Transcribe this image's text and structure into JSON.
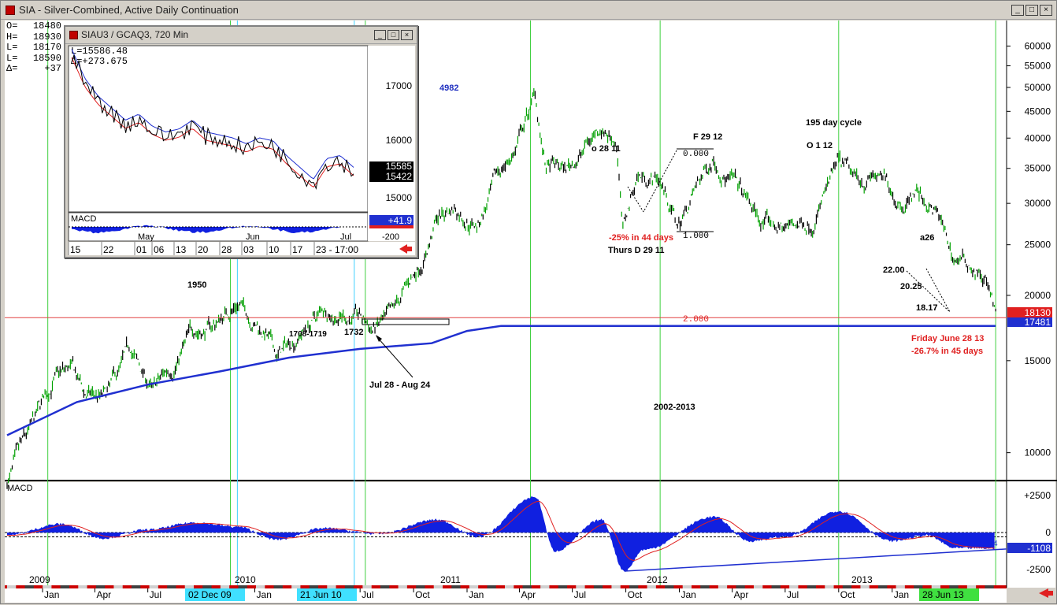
{
  "window": {
    "title": "SIA - Silver-Combined, Active Daily Continuation",
    "buttons": [
      "_",
      "□",
      "×"
    ]
  },
  "ohlc": [
    {
      "k": "O=",
      "v": "18480"
    },
    {
      "k": "H=",
      "v": "18930"
    },
    {
      "k": "L=",
      "v": "18170"
    },
    {
      "k": "L=",
      "v": "18590"
    },
    {
      "k": "Δ=",
      "v": "+37"
    }
  ],
  "inset": {
    "title": "SIAU3 / GCAQ3, 720 Min",
    "readout": [
      "L=15586.48",
      "Δ=+273.675"
    ],
    "price_ticks": [
      "17000",
      "16000",
      "15000"
    ],
    "price_boxes": [
      "15585",
      "15422"
    ],
    "macd_label": "MACD",
    "macd_value": "+41.9",
    "macd_tick": "-200",
    "month_labels": [
      "May",
      "Jun",
      "Jul"
    ],
    "date_labels": [
      "15",
      "22",
      "01",
      "06",
      "13",
      "20",
      "28",
      "03",
      "10",
      "17",
      "23 - 17:00"
    ]
  },
  "annotations": {
    "a4982": "4982",
    "a1950": "1950",
    "a1708": "1708-1719",
    "a1732": "1732",
    "jul28": "Jul 28 - Aug 24",
    "o2811": "o 28 11",
    "f2912": "F 29 12",
    "f2912_val": "0.000",
    "pct25": "-25% in 44 days",
    "thurs": "Thurs D 29 11",
    "one000": "1.000",
    "cycle": "195 day cycle",
    "o112": "O 1 12",
    "a26": "a26",
    "v2200": "22.00",
    "v2025": "20.25",
    "v1817": "18.17",
    "two000": "2.000",
    "friday": "Friday June 28 13",
    "pct267": "-26.7% in 45 days",
    "range": "2002-2013",
    "macd_4": "4"
  },
  "price_boxes": {
    "last": "18130",
    "line": "17481"
  },
  "macd_panel": {
    "label": "MACD",
    "value": "-1108",
    "ticks": [
      "+2500",
      "0",
      "-2500"
    ]
  },
  "axis": {
    "years": [
      "2009",
      "2010",
      "2011",
      "2012",
      "2013"
    ],
    "months": [
      "Jan",
      "Apr",
      "Jul",
      "Oct",
      "Jan",
      "Apr",
      "Jul",
      "Oct",
      "Jan",
      "Apr",
      "Jul",
      "Oct",
      "Jan",
      "Apr",
      "Jul",
      "Oct",
      "Jan",
      "Apr"
    ],
    "highlight_dates": [
      "02 Dec 09",
      "21 Jun 10",
      "28 Jun 13"
    ]
  },
  "chart_data": {
    "type": "line",
    "title": "SIA - Silver-Combined, Active Daily Continuation",
    "scale": "log",
    "ylim": [
      9000,
      66000
    ],
    "yticks": [
      60000,
      55000,
      50000,
      45000,
      40000,
      35000,
      30000,
      25000,
      20000,
      15000,
      10000
    ],
    "x_range": [
      "2008-11",
      "2013-07"
    ],
    "series": [
      {
        "name": "Price",
        "points": [
          [
            "2008-11-01",
            8800
          ],
          [
            "2008-12-15",
            11000
          ],
          [
            "2009-01-20",
            13800
          ],
          [
            "2009-02-20",
            14300
          ],
          [
            "2009-03-15",
            12800
          ],
          [
            "2009-04-20",
            12600
          ],
          [
            "2009-06-01",
            15500
          ],
          [
            "2009-07-10",
            13000
          ],
          [
            "2009-08-15",
            14800
          ],
          [
            "2009-09-20",
            17200
          ],
          [
            "2009-10-20",
            17400
          ],
          [
            "2009-12-02",
            19500
          ],
          [
            "2010-01-20",
            17000
          ],
          [
            "2010-02-08",
            15200
          ],
          [
            "2010-03-20",
            17000
          ],
          [
            "2010-05-01",
            18800
          ],
          [
            "2010-06-21",
            18300
          ],
          [
            "2010-07-20",
            17200
          ],
          [
            "2010-08-24",
            17800
          ],
          [
            "2010-09-20",
            20500
          ],
          [
            "2010-10-20",
            24000
          ],
          [
            "2010-11-10",
            28000
          ],
          [
            "2010-12-10",
            29500
          ],
          [
            "2011-01-20",
            27500
          ],
          [
            "2011-02-25",
            34000
          ],
          [
            "2011-03-25",
            38000
          ],
          [
            "2011-04-28",
            48200
          ],
          [
            "2011-05-15",
            35000
          ],
          [
            "2011-06-20",
            34500
          ],
          [
            "2011-07-20",
            38000
          ],
          [
            "2011-08-20",
            42500
          ],
          [
            "2011-09-15",
            40000
          ],
          [
            "2011-09-26",
            26500
          ],
          [
            "2011-10-20",
            34000
          ],
          [
            "2011-11-29",
            33500
          ],
          [
            "2011-12-29",
            27000
          ],
          [
            "2012-02-29",
            37200
          ],
          [
            "2012-04-15",
            31500
          ],
          [
            "2012-05-20",
            27500
          ],
          [
            "2012-06-28",
            26800
          ],
          [
            "2012-08-15",
            28000
          ],
          [
            "2012-10-01",
            35000
          ],
          [
            "2012-11-01",
            32500
          ],
          [
            "2012-12-01",
            34000
          ],
          [
            "2013-01-15",
            30500
          ],
          [
            "2013-02-10",
            32000
          ],
          [
            "2013-03-20",
            28500
          ],
          [
            "2013-04-15",
            23500
          ],
          [
            "2013-05-15",
            23000
          ],
          [
            "2013-06-10",
            21500
          ],
          [
            "2013-06-28",
            18130
          ]
        ]
      },
      {
        "name": "Moving average",
        "points": [
          [
            "2008-11-01",
            10800
          ],
          [
            "2009-03-01",
            12500
          ],
          [
            "2009-07-01",
            13500
          ],
          [
            "2009-11-01",
            14300
          ],
          [
            "2010-03-01",
            15200
          ],
          [
            "2010-07-01",
            15800
          ],
          [
            "2010-11-01",
            16200
          ],
          [
            "2011-01-01",
            17100
          ],
          [
            "2011-03-01",
            17481
          ],
          [
            "2013-06-28",
            17481
          ]
        ]
      }
    ],
    "macd": {
      "name": "MACD",
      "ylim": [
        -2700,
        2700
      ],
      "points": [
        [
          "2008-11-01",
          -200
        ],
        [
          "2009-02-01",
          600
        ],
        [
          "2009-04-15",
          -400
        ],
        [
          "2009-07-01",
          200
        ],
        [
          "2009-09-20",
          700
        ],
        [
          "2009-12-02",
          400
        ],
        [
          "2010-02-08",
          -500
        ],
        [
          "2010-05-01",
          300
        ],
        [
          "2010-08-01",
          -100
        ],
        [
          "2010-11-10",
          900
        ],
        [
          "2011-01-20",
          -300
        ],
        [
          "2011-04-28",
          2500
        ],
        [
          "2011-06-01",
          -1300
        ],
        [
          "2011-08-20",
          900
        ],
        [
          "2011-09-29",
          -2700
        ],
        [
          "2011-11-01",
          -1200
        ],
        [
          "2012-02-29",
          1100
        ],
        [
          "2012-05-01",
          -600
        ],
        [
          "2012-07-01",
          -300
        ],
        [
          "2012-10-01",
          1500
        ],
        [
          "2013-01-01",
          -600
        ],
        [
          "2013-03-01",
          -200
        ],
        [
          "2013-04-20",
          -1100
        ],
        [
          "2013-06-28",
          -1108
        ]
      ]
    }
  }
}
